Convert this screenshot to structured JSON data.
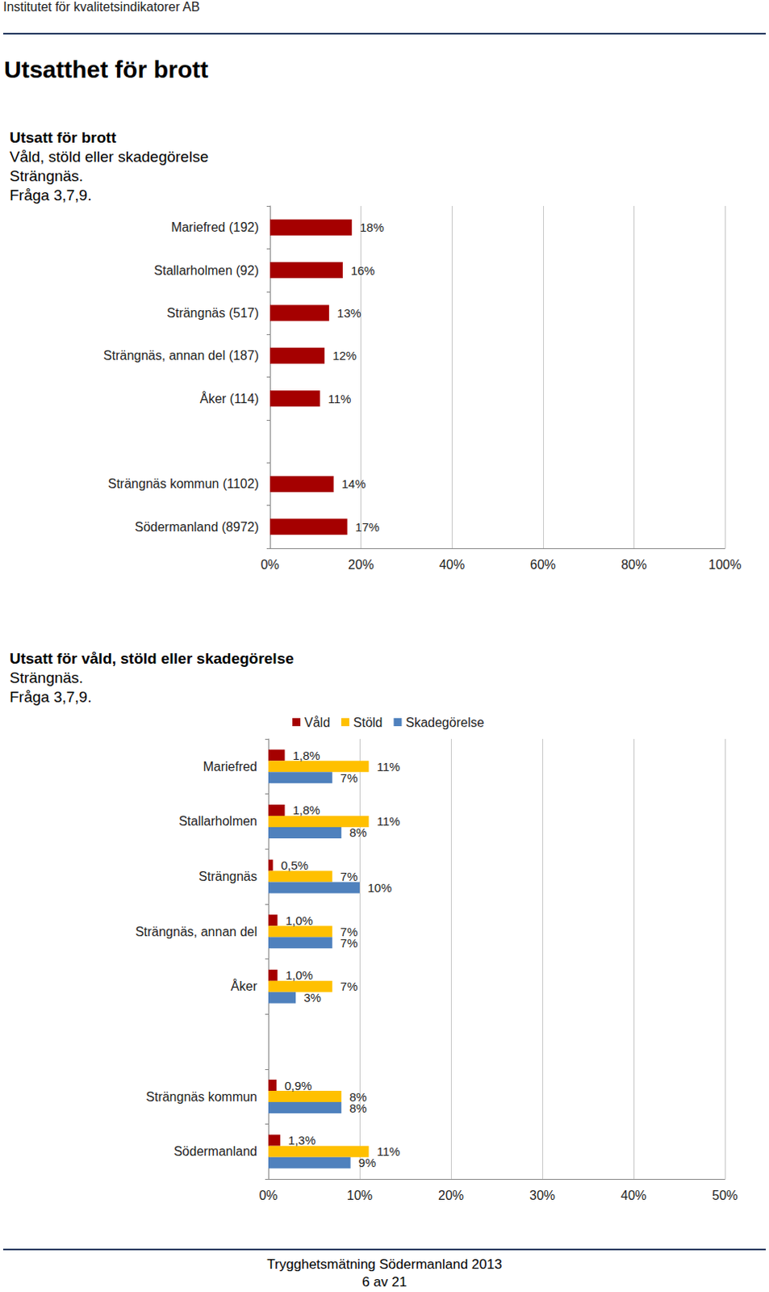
{
  "header": "Institutet för kvalitetsindikatorer AB",
  "heading": "Utsatthet för brott",
  "footer": {
    "title": "Trygghetsmätning Södermanland 2013",
    "page": "6 av 21"
  },
  "chart_data": [
    {
      "type": "bar",
      "orientation": "horizontal",
      "title": "Utsatt för brott",
      "subtitle": [
        "Våld, stöld eller skadegörelse",
        "Strängnäs.",
        "Fråga 3,7,9."
      ],
      "categories": [
        "Mariefred (192)",
        "Stallarholmen (92)",
        "Strängnäs (517)",
        "Strängnäs, annan del (187)",
        "Åker (114)",
        null,
        "Strängnäs kommun (1102)",
        "Södermanland (8972)"
      ],
      "values": [
        18,
        16,
        13,
        12,
        11,
        null,
        14,
        17
      ],
      "value_labels": [
        "18%",
        "16%",
        "13%",
        "12%",
        "11%",
        null,
        "14%",
        "17%"
      ],
      "color": "#a50000",
      "xlim": [
        0,
        100
      ],
      "xticks": [
        {
          "value": 0,
          "label": "0%"
        },
        {
          "value": 20,
          "label": "20%"
        },
        {
          "value": 40,
          "label": "40%"
        },
        {
          "value": 60,
          "label": "60%"
        },
        {
          "value": 80,
          "label": "80%"
        },
        {
          "value": 100,
          "label": "100%"
        }
      ],
      "grid": true,
      "data_labels": true
    },
    {
      "type": "bar",
      "orientation": "horizontal",
      "title": "Utsatt för våld, stöld eller skadegörelse",
      "subtitle": [
        "Strängnäs.",
        "Fråga 3,7,9."
      ],
      "categories": [
        "Mariefred",
        "Stallarholmen",
        "Strängnäs",
        "Strängnäs, annan del",
        "Åker",
        null,
        "Strängnäs kommun",
        "Södermanland"
      ],
      "series": [
        {
          "name": "Våld",
          "color": "#a50000",
          "values": [
            1.8,
            1.8,
            0.5,
            1.0,
            1.0,
            null,
            0.9,
            1.3
          ],
          "value_labels": [
            "1,8%",
            "1,8%",
            "0,5%",
            "1,0%",
            "1,0%",
            null,
            "0,9%",
            "1,3%"
          ]
        },
        {
          "name": "Stöld",
          "color": "#ffc000",
          "values": [
            11,
            11,
            7,
            7,
            7,
            null,
            8,
            11
          ],
          "value_labels": [
            "11%",
            "11%",
            "7%",
            "7%",
            "7%",
            null,
            "8%",
            "11%"
          ]
        },
        {
          "name": "Skadegörelse",
          "color": "#4f81bd",
          "values": [
            7,
            8,
            10,
            7,
            3,
            null,
            8,
            9
          ],
          "value_labels": [
            "7%",
            "8%",
            "10%",
            "7%",
            "3%",
            null,
            "8%",
            "9%"
          ]
        }
      ],
      "xlim": [
        0,
        50
      ],
      "xticks": [
        {
          "value": 0,
          "label": "0%"
        },
        {
          "value": 10,
          "label": "10%"
        },
        {
          "value": 20,
          "label": "20%"
        },
        {
          "value": 30,
          "label": "30%"
        },
        {
          "value": 40,
          "label": "40%"
        },
        {
          "value": 50,
          "label": "50%"
        }
      ],
      "grid": true,
      "legend": "top",
      "data_labels": true
    }
  ]
}
